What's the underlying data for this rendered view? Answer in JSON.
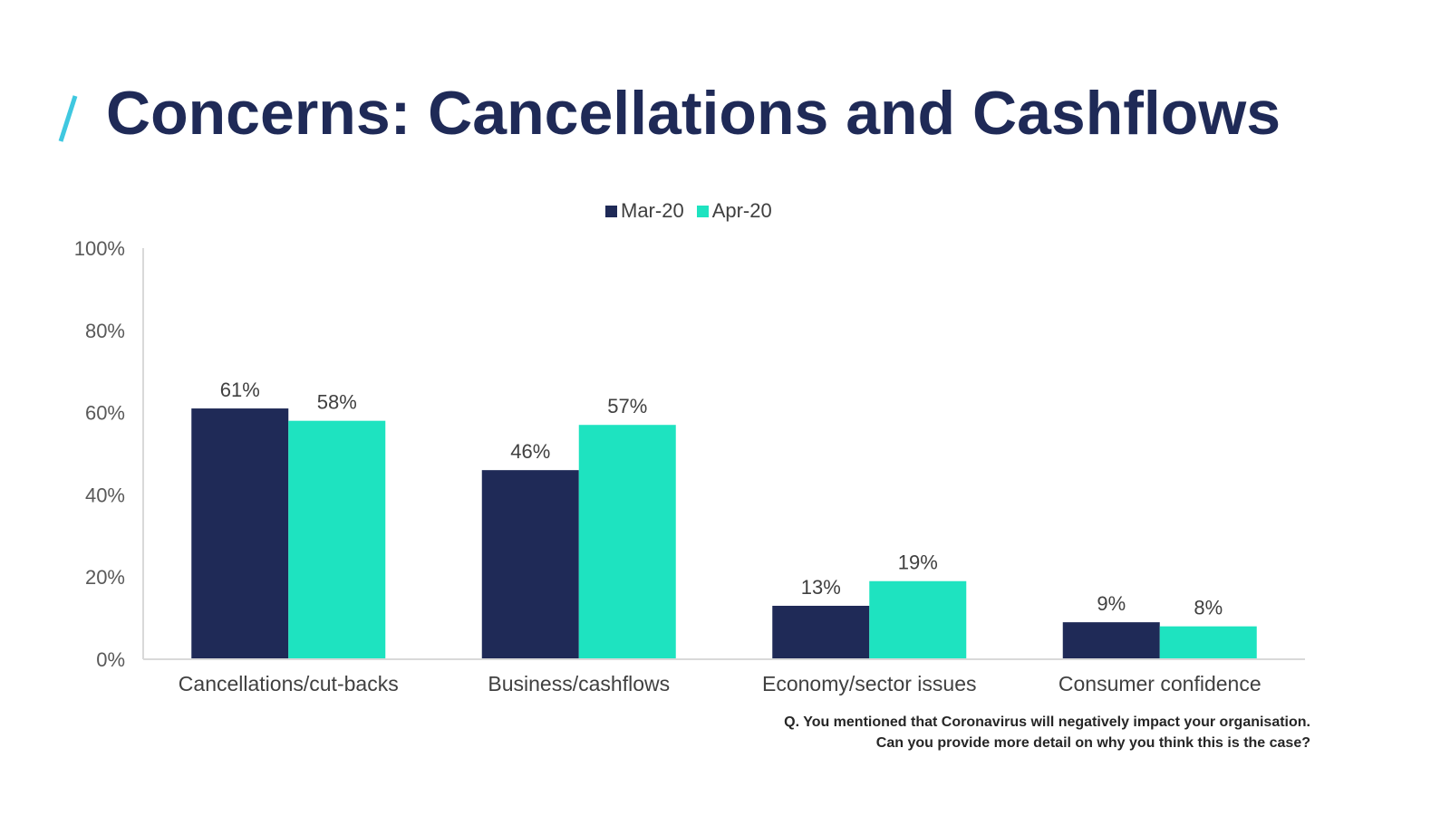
{
  "title": "Concerns: Cancellations and Cashflows",
  "colors": {
    "title": "#1f2a57",
    "accent_slash": "#3fc8e0",
    "mar": "#1f2a57",
    "apr": "#1ee3c0"
  },
  "question": {
    "line1": "Q. You mentioned that Coronavirus will negatively impact your organisation.",
    "line2": "Can you provide more detail on why you think this is the case?"
  },
  "chart_data": {
    "type": "bar",
    "title": "",
    "xlabel": "",
    "ylabel": "",
    "ylim": [
      0,
      100
    ],
    "yticks": [
      "0%",
      "20%",
      "40%",
      "60%",
      "80%",
      "100%"
    ],
    "ytick_values": [
      0,
      20,
      40,
      60,
      80,
      100
    ],
    "categories": [
      "Cancellations/cut-backs",
      "Business/cashflows",
      "Economy/sector issues",
      "Consumer confidence"
    ],
    "series": [
      {
        "name": "Mar-20",
        "values": [
          61,
          46,
          13,
          9
        ],
        "labels": [
          "61%",
          "46%",
          "13%",
          "9%"
        ],
        "color": "#1f2a57"
      },
      {
        "name": "Apr-20",
        "values": [
          58,
          57,
          19,
          8
        ],
        "labels": [
          "58%",
          "57%",
          "19%",
          "8%"
        ],
        "color": "#1ee3c0"
      }
    ],
    "legend": "top-center",
    "grid": false
  }
}
